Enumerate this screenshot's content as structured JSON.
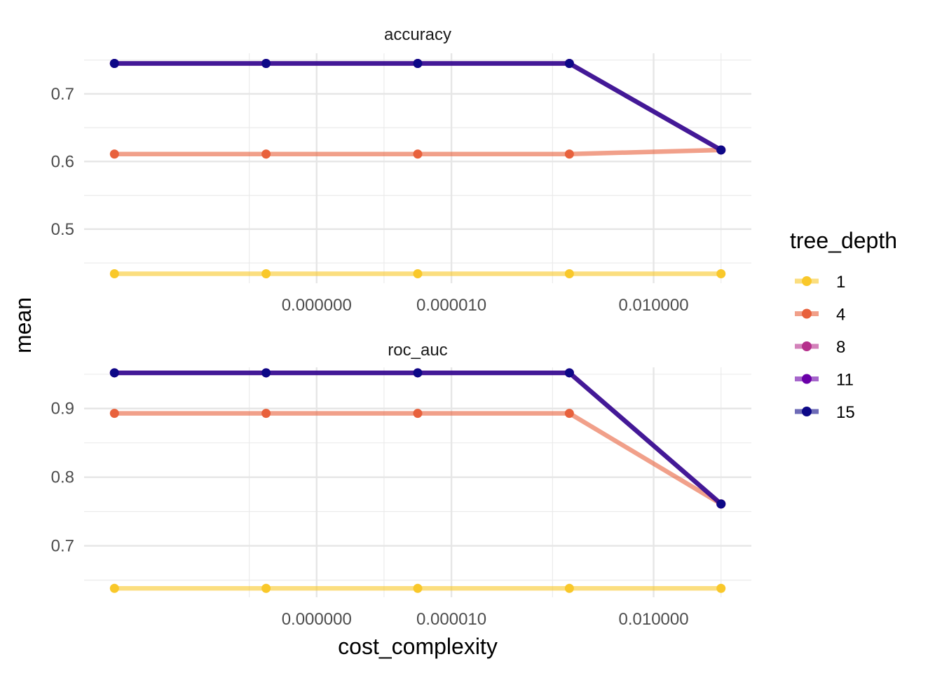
{
  "chart_data": {
    "type": "line",
    "xlabel": "cost_complexity",
    "ylabel": "mean",
    "x_scale": "log10",
    "x": [
      1e-10,
      1.778e-08,
      3.162e-06,
      0.0005623,
      0.1
    ],
    "x_ticks": [
      {
        "value": 1e-07,
        "label": "0.000000"
      },
      {
        "value": 1e-05,
        "label": "0.000010"
      },
      {
        "value": 0.01,
        "label": "0.010000"
      }
    ],
    "legend": {
      "title": "tree_depth",
      "position": "right",
      "entries": [
        {
          "label": "1",
          "color": "#f9c82a"
        },
        {
          "label": "4",
          "color": "#e8613c"
        },
        {
          "label": "8",
          "color": "#b52f8c"
        },
        {
          "label": "11",
          "color": "#6a00a8"
        },
        {
          "label": "15",
          "color": "#0d0887"
        }
      ]
    },
    "panels": [
      {
        "title": "accuracy",
        "ylim": [
          0.42,
          0.76
        ],
        "y_ticks": [
          0.5,
          0.6,
          0.7
        ],
        "y_tick_labels": [
          "0.5",
          "0.6",
          "0.7"
        ],
        "series": [
          {
            "name": "1",
            "values": [
              0.434,
              0.434,
              0.434,
              0.434,
              0.434
            ]
          },
          {
            "name": "4",
            "values": [
              0.611,
              0.611,
              0.611,
              0.611,
              0.617
            ]
          },
          {
            "name": "8",
            "values": [
              0.745,
              0.745,
              0.745,
              0.745,
              0.617
            ]
          },
          {
            "name": "11",
            "values": [
              0.745,
              0.745,
              0.745,
              0.745,
              0.617
            ]
          },
          {
            "name": "15",
            "values": [
              0.745,
              0.745,
              0.745,
              0.745,
              0.617
            ]
          }
        ]
      },
      {
        "title": "roc_auc",
        "ylim": [
          0.625,
          0.96
        ],
        "y_ticks": [
          0.7,
          0.8,
          0.9
        ],
        "y_tick_labels": [
          "0.7",
          "0.8",
          "0.9"
        ],
        "series": [
          {
            "name": "1",
            "values": [
              0.638,
              0.638,
              0.638,
              0.638,
              0.638
            ]
          },
          {
            "name": "4",
            "values": [
              0.893,
              0.893,
              0.893,
              0.893,
              0.761
            ]
          },
          {
            "name": "8",
            "values": [
              0.952,
              0.952,
              0.952,
              0.952,
              0.761
            ]
          },
          {
            "name": "11",
            "values": [
              0.952,
              0.952,
              0.952,
              0.952,
              0.761
            ]
          },
          {
            "name": "15",
            "values": [
              0.952,
              0.952,
              0.952,
              0.952,
              0.761
            ]
          }
        ]
      }
    ],
    "grid": true
  }
}
